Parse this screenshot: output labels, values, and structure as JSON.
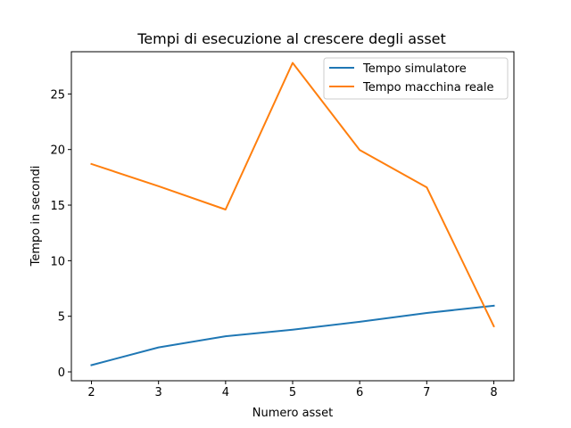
{
  "chart_data": {
    "type": "line",
    "title": "Tempi di esecuzione al crescere degli asset",
    "xlabel": "Numero asset",
    "ylabel": "Tempo in secondi",
    "x": [
      2,
      3,
      4,
      5,
      6,
      7,
      8
    ],
    "xticks": [
      2,
      3,
      4,
      5,
      6,
      7,
      8
    ],
    "yticks": [
      0,
      5,
      10,
      15,
      20,
      25
    ],
    "xlim": [
      1.7,
      8.3
    ],
    "ylim": [
      -0.8,
      28.8
    ],
    "grid": false,
    "legend_position": "top-right",
    "series": [
      {
        "name": "Tempo simulatore",
        "color": "#1f77b4",
        "values": [
          0.6,
          2.2,
          3.2,
          3.8,
          4.5,
          5.3,
          5.95
        ]
      },
      {
        "name": "Tempo macchina reale",
        "color": "#ff7f0e",
        "values": [
          18.7,
          16.7,
          14.6,
          27.8,
          19.95,
          16.6,
          4.1
        ]
      }
    ]
  }
}
